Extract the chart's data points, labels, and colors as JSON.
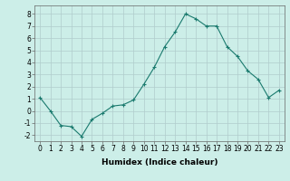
{
  "x": [
    0,
    1,
    2,
    3,
    4,
    5,
    6,
    7,
    8,
    9,
    10,
    11,
    12,
    13,
    14,
    15,
    16,
    17,
    18,
    19,
    20,
    21,
    22,
    23
  ],
  "y": [
    1.1,
    0.0,
    -1.2,
    -1.3,
    -2.1,
    -0.7,
    -0.2,
    0.4,
    0.5,
    0.9,
    2.2,
    3.6,
    5.3,
    6.5,
    8.0,
    7.6,
    7.0,
    7.0,
    5.3,
    4.5,
    3.3,
    2.6,
    1.1,
    1.7
  ],
  "line_color": "#1a7a6e",
  "marker": "+",
  "marker_size": 3,
  "bg_color": "#cceee8",
  "grid_color": "#b0cccc",
  "xlabel": "Humidex (Indice chaleur)",
  "xlim_min": -0.5,
  "xlim_max": 23.5,
  "ylim_min": -2.5,
  "ylim_max": 8.7,
  "yticks": [
    -2,
    -1,
    0,
    1,
    2,
    3,
    4,
    5,
    6,
    7,
    8
  ],
  "xticks": [
    0,
    1,
    2,
    3,
    4,
    5,
    6,
    7,
    8,
    9,
    10,
    11,
    12,
    13,
    14,
    15,
    16,
    17,
    18,
    19,
    20,
    21,
    22,
    23
  ],
  "xtick_labels": [
    "0",
    "1",
    "2",
    "3",
    "4",
    "5",
    "6",
    "7",
    "8",
    "9",
    "10",
    "11",
    "12",
    "13",
    "14",
    "15",
    "16",
    "17",
    "18",
    "19",
    "20",
    "21",
    "22",
    "23"
  ],
  "label_fontsize": 6.5,
  "tick_fontsize": 5.5
}
